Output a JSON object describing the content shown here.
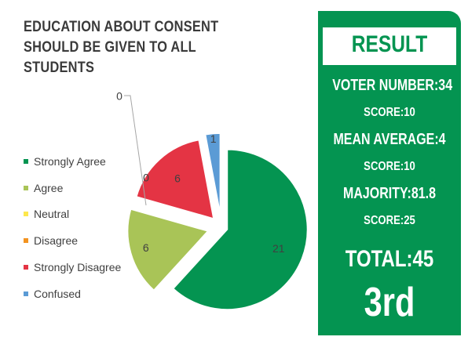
{
  "chart_data": {
    "type": "pie",
    "title": "EDUCATION ABOUT CONSENT SHOULD BE GIVEN TO ALL STUDENTS",
    "categories": [
      "Strongly Agree",
      "Agree",
      "Neutral",
      "Disagree",
      "Strongly Disagree",
      "Confused"
    ],
    "values": [
      21,
      6,
      0,
      0,
      6,
      1
    ],
    "colors": [
      "#049451",
      "#a9c457",
      "#fde74c",
      "#f39320",
      "#e43444",
      "#5b9bd5"
    ],
    "exploded": true,
    "legend": "left"
  },
  "result": {
    "title": "RESULT",
    "voter_number": "VOTER NUMBER:34",
    "score_1": "SCORE:10",
    "mean_average": "MEAN AVERAGE:4",
    "score_2": "SCORE:10",
    "majority": "MAJORITY:81.8",
    "score_3": "SCORE:25",
    "total": "TOTAL:45",
    "rank": "3rd"
  }
}
